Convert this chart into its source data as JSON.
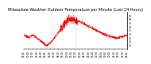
{
  "title": "Milwaukee Weather Outdoor Temperature per Minute (Last 24 Hours)",
  "line_color": "#ff0000",
  "bg_color": "#ffffff",
  "ylim": [
    10,
    60
  ],
  "yticks": [
    15,
    20,
    25,
    30,
    35,
    40,
    45,
    50,
    55
  ],
  "n_points": 1440,
  "vline_positions": [
    0.27,
    0.5
  ],
  "vline_color": "#888888",
  "title_fontsize": 3.5,
  "tick_fontsize": 2.2,
  "linewidth": 0.5
}
